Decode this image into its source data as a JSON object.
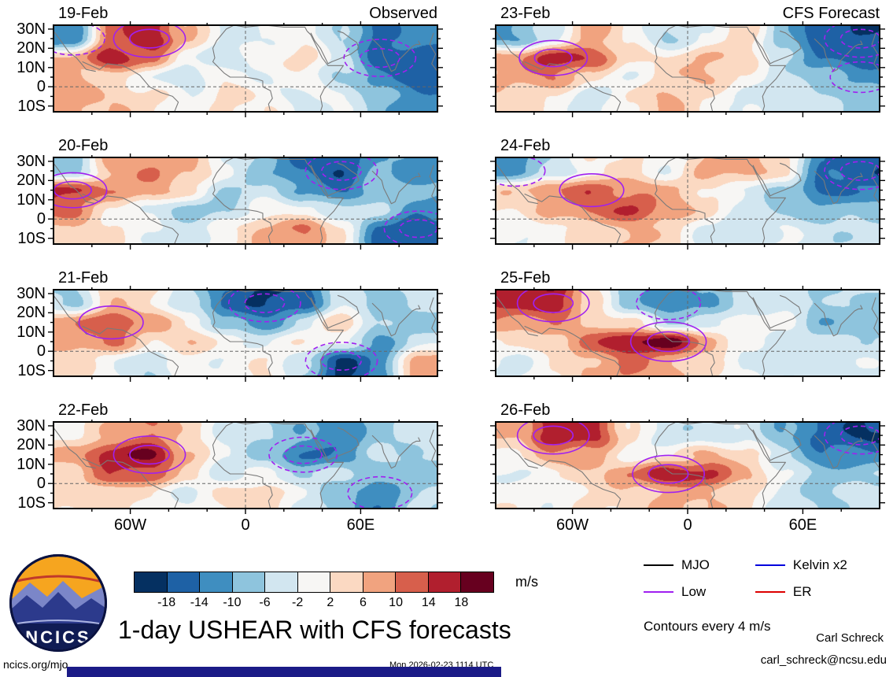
{
  "title": "1-day USHEAR with CFS forecasts",
  "columns": {
    "left_header": "Observed",
    "right_header": "CFS Forecast"
  },
  "axes": {
    "lat_ticks": [
      "30N",
      "20N",
      "10N",
      "0",
      "10S"
    ],
    "lon_ticks": [
      "60W",
      "0",
      "60E"
    ]
  },
  "colorbar": {
    "levels": [
      -18,
      -14,
      -10,
      -6,
      -2,
      2,
      6,
      10,
      14,
      18
    ],
    "colors": [
      "#053061",
      "#1e61a5",
      "#3f8ec0",
      "#8ec4dd",
      "#d2e6f0",
      "#f7f6f4",
      "#fbd9c2",
      "#f1a37f",
      "#d75f4c",
      "#b11f2e",
      "#67001f"
    ],
    "units": "m/s"
  },
  "legend": {
    "items": [
      {
        "label": "MJO",
        "color": "#000000"
      },
      {
        "label": "Low",
        "color": "#a020f0"
      },
      {
        "label": "Kelvin x2",
        "color": "#0000dd"
      },
      {
        "label": "ER",
        "color": "#dd0000"
      }
    ],
    "note": "Contours every 4 m/s"
  },
  "logo": {
    "text": "NCICS"
  },
  "meta": {
    "site": "ncics.org/mjo",
    "timestamp": "Mon 2026-02-23 1114 UTC",
    "credit_name": "Carl Schreck",
    "credit_email": "carl_schreck@ncsu.edu"
  },
  "chart_data": {
    "type": "heatmap",
    "title": "1-day USHEAR with CFS forecasts",
    "units": "m/s",
    "contour_interval": 4,
    "lon_range": [
      -100,
      100
    ],
    "lat_range": [
      -13,
      32
    ],
    "lon_tick_values": [
      -60,
      0,
      60
    ],
    "lat_tick_values": [
      30,
      20,
      10,
      0,
      -10
    ],
    "grid_lons": [
      -90,
      -70,
      -50,
      -30,
      -10,
      10,
      30,
      50,
      70,
      90
    ],
    "grid_lats": [
      25,
      15,
      5,
      -5
    ],
    "overlay_waves": [
      "MJO",
      "Low",
      "Kelvin x2",
      "ER"
    ],
    "panels": [
      {
        "label": "19-Feb",
        "column": "Observed",
        "grid": [
          [
            -14,
            12,
            18,
            6,
            -4,
            -2,
            2,
            -6,
            -16,
            -12
          ],
          [
            6,
            18,
            12,
            -2,
            -6,
            2,
            4,
            -4,
            -18,
            -16
          ],
          [
            8,
            4,
            -2,
            -6,
            2,
            -2,
            2,
            -8,
            -12,
            -16
          ],
          [
            8,
            6,
            2,
            -2,
            4,
            2,
            -4,
            -2,
            -8,
            -12
          ]
        ]
      },
      {
        "label": "20-Feb",
        "column": "Observed",
        "grid": [
          [
            -8,
            8,
            10,
            6,
            -2,
            -8,
            -14,
            -18,
            -10,
            -12
          ],
          [
            16,
            10,
            8,
            2,
            -6,
            -4,
            -10,
            -16,
            -6,
            -8
          ],
          [
            12,
            2,
            -4,
            -8,
            -6,
            2,
            -2,
            -6,
            -4,
            -12
          ],
          [
            6,
            2,
            -2,
            -4,
            2,
            6,
            10,
            2,
            -14,
            -16
          ]
        ]
      },
      {
        "label": "21-Feb",
        "column": "Observed",
        "grid": [
          [
            -6,
            6,
            2,
            -6,
            -14,
            -18,
            -16,
            -4,
            -8,
            -4
          ],
          [
            10,
            14,
            8,
            2,
            -8,
            -12,
            -6,
            6,
            -6,
            -8
          ],
          [
            8,
            10,
            2,
            6,
            2,
            -4,
            2,
            -2,
            -10,
            -4
          ],
          [
            4,
            -2,
            -6,
            2,
            -2,
            2,
            -6,
            -18,
            -12,
            8
          ]
        ]
      },
      {
        "label": "22-Feb",
        "column": "Observed",
        "grid": [
          [
            2,
            6,
            10,
            4,
            -2,
            -6,
            -10,
            -14,
            -6,
            -4
          ],
          [
            8,
            16,
            18,
            8,
            -2,
            -8,
            -16,
            -12,
            -4,
            -6
          ],
          [
            4,
            12,
            14,
            4,
            -4,
            -2,
            -6,
            -4,
            -8,
            -10
          ],
          [
            2,
            4,
            2,
            -2,
            2,
            4,
            -2,
            -8,
            -14,
            -6
          ]
        ]
      },
      {
        "label": "23-Feb",
        "column": "CFS Forecast",
        "grid": [
          [
            -10,
            -4,
            8,
            2,
            -6,
            -2,
            4,
            -8,
            -16,
            -18
          ],
          [
            8,
            16,
            14,
            4,
            2,
            6,
            4,
            -4,
            -14,
            -16
          ],
          [
            6,
            10,
            4,
            -2,
            4,
            6,
            2,
            -4,
            -8,
            -12
          ],
          [
            4,
            2,
            -4,
            2,
            6,
            2,
            -2,
            -4,
            -6,
            -8
          ]
        ]
      },
      {
        "label": "24-Feb",
        "column": "CFS Forecast",
        "grid": [
          [
            -12,
            -6,
            2,
            4,
            -2,
            6,
            8,
            4,
            -14,
            -18
          ],
          [
            4,
            10,
            14,
            10,
            6,
            2,
            -2,
            -6,
            -16,
            -14
          ],
          [
            2,
            8,
            12,
            14,
            8,
            4,
            -2,
            -8,
            -10,
            -8
          ],
          [
            -2,
            2,
            4,
            6,
            4,
            -2,
            -4,
            -2,
            -6,
            -4
          ]
        ]
      },
      {
        "label": "25-Feb",
        "column": "CFS Forecast",
        "grid": [
          [
            14,
            18,
            4,
            -8,
            -14,
            -10,
            -4,
            -2,
            -8,
            -6
          ],
          [
            8,
            10,
            6,
            2,
            -6,
            -4,
            2,
            -2,
            -10,
            -8
          ],
          [
            2,
            6,
            12,
            18,
            20,
            10,
            -2,
            -4,
            -6,
            -4
          ],
          [
            -2,
            2,
            6,
            10,
            8,
            4,
            -2,
            -6,
            -4,
            -2
          ]
        ]
      },
      {
        "label": "26-Feb",
        "column": "CFS Forecast",
        "grid": [
          [
            6,
            18,
            16,
            2,
            -6,
            -4,
            -2,
            -10,
            -16,
            -18
          ],
          [
            2,
            10,
            8,
            -2,
            2,
            8,
            4,
            -6,
            -14,
            -12
          ],
          [
            -2,
            2,
            4,
            10,
            18,
            16,
            6,
            -2,
            -8,
            -6
          ],
          [
            2,
            -2,
            2,
            4,
            8,
            6,
            2,
            -4,
            -6,
            -4
          ]
        ]
      }
    ]
  }
}
